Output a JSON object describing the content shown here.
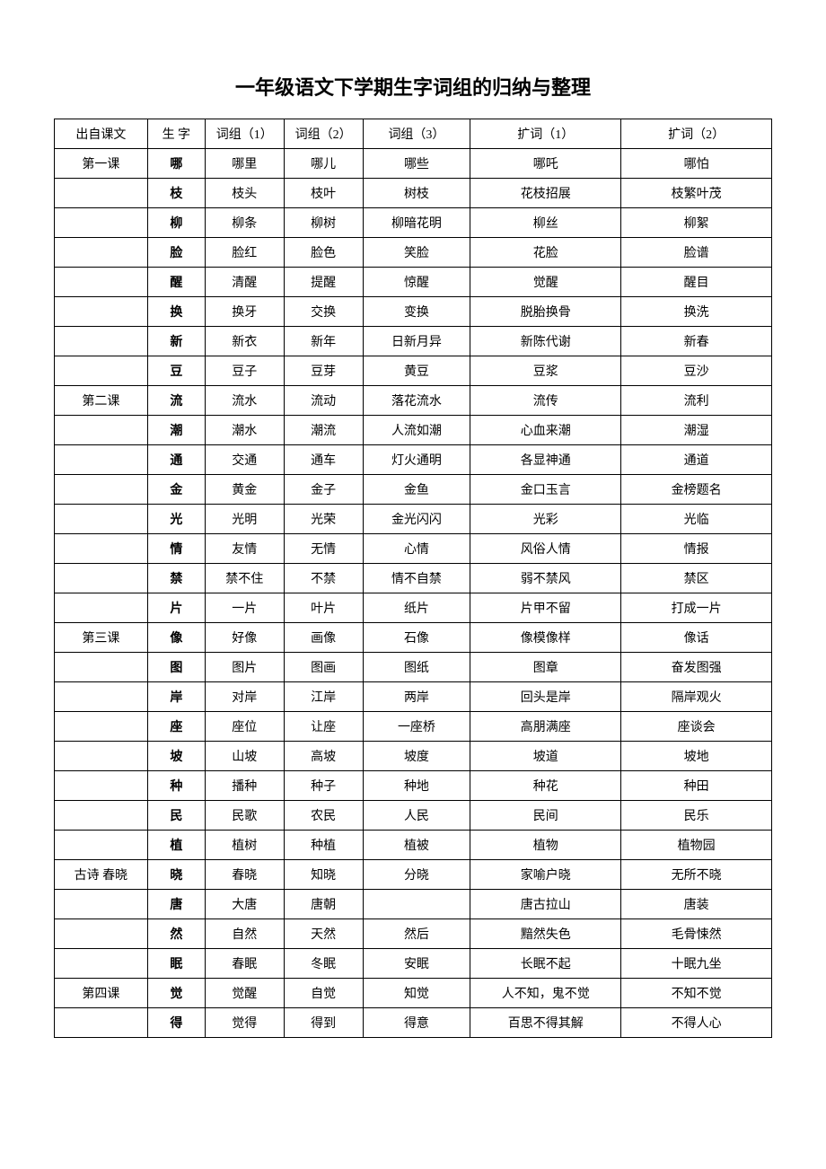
{
  "title": "一年级语文下学期生字词组的归纳与整理",
  "table": {
    "columns": [
      "出自课文",
      "生  字",
      "词组（1）",
      "词组（2）",
      "词组（3）",
      "扩词（1）",
      "扩词（2）"
    ],
    "column_widths": [
      "13%",
      "8%",
      "11%",
      "11%",
      "15%",
      "21%",
      "21%"
    ],
    "border_color": "#000000",
    "background_color": "#ffffff",
    "text_color": "#000000",
    "header_fontsize": 14,
    "cell_fontsize": 14,
    "title_fontsize": 22,
    "rows": [
      [
        "第一课",
        "哪",
        "哪里",
        "哪儿",
        "哪些",
        "哪吒",
        "哪怕"
      ],
      [
        "",
        "枝",
        "枝头",
        "枝叶",
        "树枝",
        "花枝招展",
        "枝繁叶茂"
      ],
      [
        "",
        "柳",
        "柳条",
        "柳树",
        "柳暗花明",
        "柳丝",
        "柳絮"
      ],
      [
        "",
        "脸",
        "脸红",
        "脸色",
        "笑脸",
        "花脸",
        "脸谱"
      ],
      [
        "",
        "醒",
        "清醒",
        "提醒",
        "惊醒",
        "觉醒",
        "醒目"
      ],
      [
        "",
        "换",
        "换牙",
        "交换",
        "变换",
        "脱胎换骨",
        "换洗"
      ],
      [
        "",
        "新",
        "新衣",
        "新年",
        "日新月异",
        "新陈代谢",
        "新春"
      ],
      [
        "",
        "豆",
        "豆子",
        "豆芽",
        "黄豆",
        "豆浆",
        "豆沙"
      ],
      [
        "第二课",
        "流",
        "流水",
        "流动",
        "落花流水",
        "流传",
        "流利"
      ],
      [
        "",
        "潮",
        "潮水",
        "潮流",
        "人流如潮",
        "心血来潮",
        "潮湿"
      ],
      [
        "",
        "通",
        "交通",
        "通车",
        "灯火通明",
        "各显神通",
        "通道"
      ],
      [
        "",
        "金",
        "黄金",
        "金子",
        "金鱼",
        "金口玉言",
        "金榜题名"
      ],
      [
        "",
        "光",
        "光明",
        "光荣",
        "金光闪闪",
        "光彩",
        "光临"
      ],
      [
        "",
        "情",
        "友情",
        "无情",
        "心情",
        "风俗人情",
        "情报"
      ],
      [
        "",
        "禁",
        "禁不住",
        "不禁",
        "情不自禁",
        "弱不禁风",
        "禁区"
      ],
      [
        "",
        "片",
        "一片",
        "叶片",
        "纸片",
        "片甲不留",
        "打成一片"
      ],
      [
        "第三课",
        "像",
        "好像",
        "画像",
        "石像",
        "像模像样",
        "像话"
      ],
      [
        "",
        "图",
        "图片",
        "图画",
        "图纸",
        "图章",
        "奋发图强"
      ],
      [
        "",
        "岸",
        "对岸",
        "江岸",
        "两岸",
        "回头是岸",
        "隔岸观火"
      ],
      [
        "",
        "座",
        "座位",
        "让座",
        "一座桥",
        "高朋满座",
        "座谈会"
      ],
      [
        "",
        "坡",
        "山坡",
        "高坡",
        "坡度",
        "坡道",
        "坡地"
      ],
      [
        "",
        "种",
        "播种",
        "种子",
        "种地",
        "种花",
        "种田"
      ],
      [
        "",
        "民",
        "民歌",
        "农民",
        "人民",
        "民间",
        "民乐"
      ],
      [
        "",
        "植",
        "植树",
        "种植",
        "植被",
        "植物",
        "植物园"
      ],
      [
        "古诗  春晓",
        "晓",
        "春晓",
        "知晓",
        "分晓",
        "家喻户晓",
        "无所不晓"
      ],
      [
        "",
        "唐",
        "大唐",
        "唐朝",
        "",
        "唐古拉山",
        "唐装"
      ],
      [
        "",
        "然",
        "自然",
        "天然",
        "然后",
        "黯然失色",
        "毛骨悚然"
      ],
      [
        "",
        "眠",
        "春眠",
        "冬眠",
        "安眠",
        "长眠不起",
        "十眠九坐"
      ],
      [
        "第四课",
        "觉",
        "觉醒",
        "自觉",
        "知觉",
        "人不知，鬼不觉",
        "不知不觉"
      ],
      [
        "",
        "得",
        "觉得",
        "得到",
        "得意",
        "百思不得其解",
        "不得人心"
      ]
    ]
  }
}
